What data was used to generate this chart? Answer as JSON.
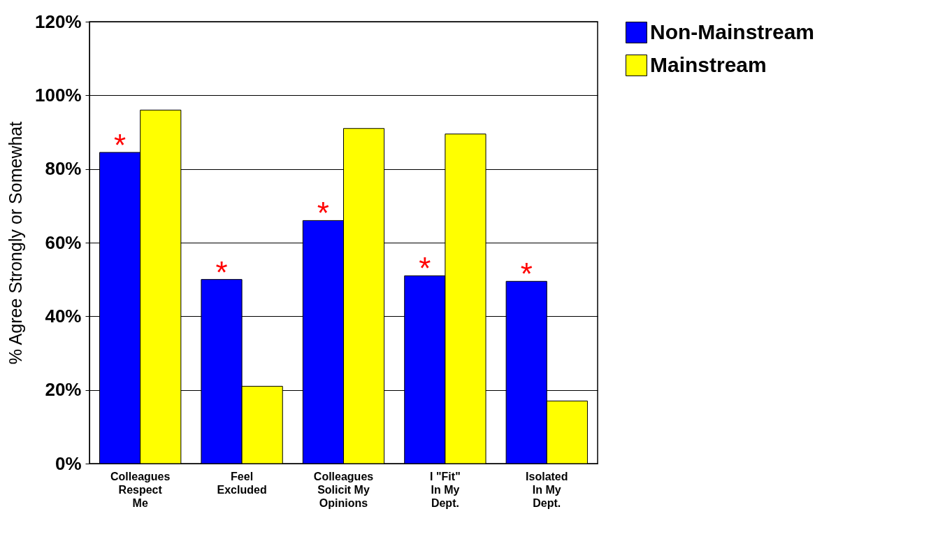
{
  "chart_data": {
    "type": "bar",
    "ylabel": "% Agree Strongly or Somewhat",
    "categories": [
      "Colleagues\nRespect\nMe",
      "Feel\nExcluded",
      "Colleagues\nSolicit My\nOpinions",
      "I \"Fit\"\nIn My\nDept.",
      "Isolated\nIn My\nDept."
    ],
    "series": [
      {
        "name": "Non-Mainstream",
        "color": "#0000ff",
        "values": [
          84.5,
          50,
          66,
          51,
          49.5
        ]
      },
      {
        "name": "Mainstream",
        "color": "#ffff00",
        "values": [
          96,
          21,
          91,
          89.5,
          17
        ]
      }
    ],
    "ylim": [
      0,
      120
    ],
    "yticks": [
      {
        "value": 0,
        "label": "0%"
      },
      {
        "value": 20,
        "label": "20%"
      },
      {
        "value": 40,
        "label": "40%"
      },
      {
        "value": 60,
        "label": "60%"
      },
      {
        "value": 80,
        "label": "80%"
      },
      {
        "value": 100,
        "label": "100%"
      },
      {
        "value": 120,
        "label": "120%"
      }
    ],
    "grid": "y",
    "legend": "right",
    "annotations": [
      {
        "text": "*",
        "x": "Colleagues\nRespect\nMe",
        "y": 84.5
      },
      {
        "text": "*",
        "x": "Feel\nExcluded",
        "y": 50
      },
      {
        "text": "*",
        "x": "Colleagues\nSolicit My\nOpinions",
        "y": 66
      },
      {
        "text": "*",
        "x": "I \"Fit\"\nIn My\nDept.",
        "y": 51
      },
      {
        "text": "*",
        "x": "Isolated\nIn My\nDept.",
        "y": 49.5
      }
    ]
  }
}
